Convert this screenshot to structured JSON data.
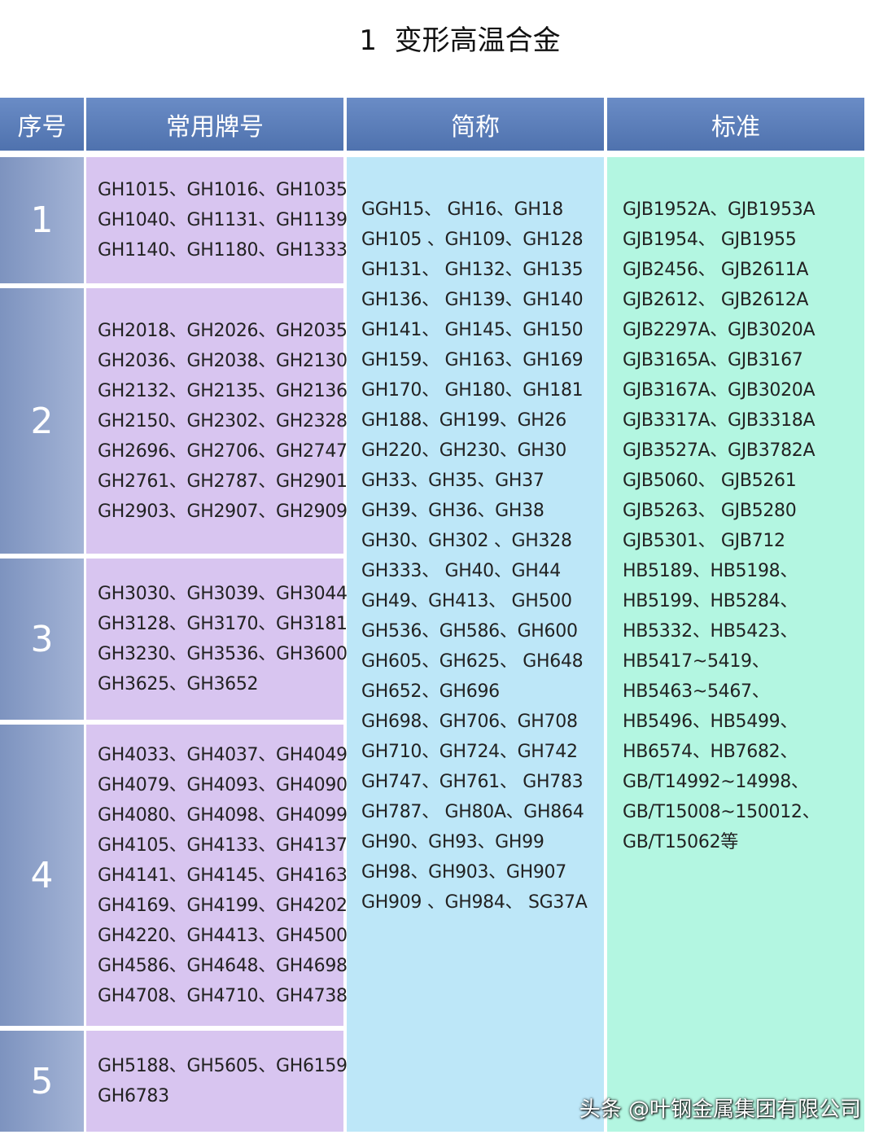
{
  "title": "1  变形高温合金",
  "table": {
    "headers": [
      "序号",
      "常用牌号",
      "简称",
      "标准"
    ],
    "rows": [
      {
        "index": "1",
        "grades": [
          "GH1015、GH1016、GH1035",
          "GH1040、GH1131、GH1139",
          "GH1140、GH1180、GH1333"
        ]
      },
      {
        "index": "2",
        "grades": [
          "GH2018、GH2026、GH2035",
          "GH2036、GH2038、GH2130",
          "GH2132、GH2135、GH2136",
          "GH2150、GH2302、GH2328",
          "GH2696、GH2706、GH2747",
          "GH2761、GH2787、GH2901",
          "GH2903、GH2907、GH2909"
        ]
      },
      {
        "index": "3",
        "grades": [
          "GH3030、GH3039、GH3044",
          "GH3128、GH3170、GH3181",
          "GH3230、GH3536、GH3600",
          "GH3625、GH3652"
        ]
      },
      {
        "index": "4",
        "grades": [
          "GH4033、GH4037、GH4049",
          "GH4079、GH4093、GH4090",
          "GH4080、GH4098、GH4099",
          "GH4105、GH4133、GH4137",
          "GH4141、GH4145、GH4163",
          "GH4169、GH4199、GH4202",
          "GH4220、GH4413、GH4500",
          "GH4586、GH4648、GH4698",
          "GH4708、GH4710、GH4738"
        ]
      },
      {
        "index": "5",
        "grades": [
          "GH5188、GH5605、GH6159",
          "GH6783"
        ]
      }
    ],
    "abbreviations": [
      "GGH15、 GH16、GH18",
      "GH105 、GH109、GH128",
      "GH131、 GH132、GH135",
      "GH136、 GH139、GH140",
      "GH141、 GH145、GH150",
      "GH159、 GH163、GH169",
      "GH170、 GH180、GH181",
      "GH188、GH199、GH26",
      "GH220、GH230、GH30",
      "GH33、GH35、GH37",
      "GH39、GH36、GH38",
      "GH30、GH302 、GH328",
      "GH333、 GH40、GH44",
      "GH49、GH413、 GH500",
      "GH536、GH586、GH600",
      "GH605、GH625、 GH648",
      "GH652、GH696",
      "GH698、GH706、GH708",
      "GH710、GH724、GH742",
      "GH747、GH761、 GH783",
      "GH787、 GH80A、GH864",
      "GH90、GH93、GH99",
      "GH98、GH903、GH907",
      "GH909 、GH984、 SG37A"
    ],
    "standards": [
      "GJB1952A、GJB1953A",
      "GJB1954、 GJB1955",
      "GJB2456、 GJB2611A",
      "GJB2612、 GJB2612A",
      "GJB2297A、GJB3020A",
      "GJB3165A、GJB3167",
      "GJB3167A、GJB3020A",
      "GJB3317A、GJB3318A",
      "GJB3527A、GJB3782A",
      "GJB5060、 GJB5261",
      "GJB5263、 GJB5280",
      "GJB5301、 GJB712",
      "HB5189、HB5198、",
      "HB5199、HB5284、",
      "HB5332、HB5423、",
      "HB5417~5419、",
      "HB5463~5467、",
      "HB5496、HB5499、",
      "HB6574、HB7682、",
      "GB/T14992~14998、",
      "GB/T15008~150012、",
      "GB/T15062等"
    ]
  },
  "watermark": "头条 @叶钢金属集团有限公司"
}
